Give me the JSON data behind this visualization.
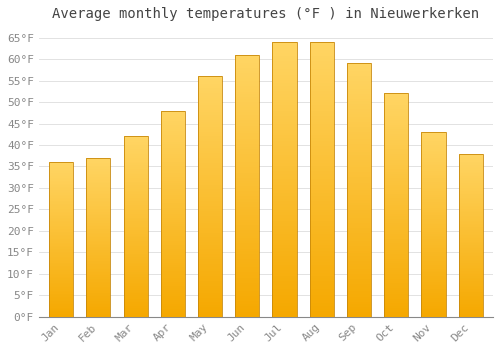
{
  "title": "Average monthly temperatures (°F ) in Nieuwerkerken",
  "months": [
    "Jan",
    "Feb",
    "Mar",
    "Apr",
    "May",
    "Jun",
    "Jul",
    "Aug",
    "Sep",
    "Oct",
    "Nov",
    "Dec"
  ],
  "values": [
    36,
    37,
    42,
    48,
    56,
    61,
    64,
    64,
    59,
    52,
    43,
    38
  ],
  "bar_color_bottom": "#F5A800",
  "bar_color_top": "#FFD966",
  "bar_edge_color": "#C8880A",
  "background_color": "#FFFFFF",
  "grid_color": "#DDDDDD",
  "ylim": [
    0,
    67
  ],
  "yticks": [
    0,
    5,
    10,
    15,
    20,
    25,
    30,
    35,
    40,
    45,
    50,
    55,
    60,
    65
  ],
  "ytick_labels": [
    "0°F",
    "5°F",
    "10°F",
    "15°F",
    "20°F",
    "25°F",
    "30°F",
    "35°F",
    "40°F",
    "45°F",
    "50°F",
    "55°F",
    "60°F",
    "65°F"
  ],
  "title_fontsize": 10,
  "tick_fontsize": 8,
  "font_family": "monospace",
  "bar_width": 0.65
}
